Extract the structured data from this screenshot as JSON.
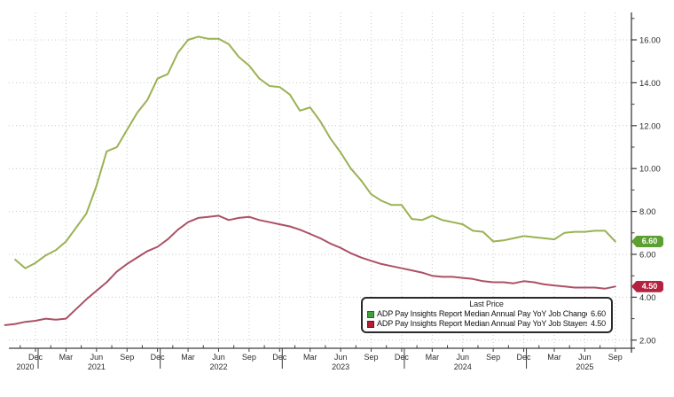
{
  "chart_data": {
    "type": "line",
    "title": "",
    "x_axis": {
      "start_month": "2020-09",
      "months_count": 61,
      "month_labels": [
        "Dec",
        "Mar",
        "Jun",
        "Sep",
        "Dec",
        "Mar",
        "Jun",
        "Sep",
        "Dec",
        "Mar",
        "Jun",
        "Sep",
        "Dec",
        "Mar",
        "Jun",
        "Sep",
        "Dec",
        "Mar",
        "Jun",
        "Sep"
      ],
      "month_label_positions": [
        3,
        6,
        9,
        12,
        15,
        18,
        21,
        24,
        27,
        30,
        33,
        36,
        39,
        42,
        45,
        48,
        51,
        54,
        57,
        60
      ],
      "year_labels": [
        {
          "label": "2020",
          "m": 2
        },
        {
          "label": "2021",
          "m": 9
        },
        {
          "label": "2022",
          "m": 21
        },
        {
          "label": "2023",
          "m": 33
        },
        {
          "label": "2024",
          "m": 45
        },
        {
          "label": "2025",
          "m": 57
        }
      ],
      "year_separator_positions": [
        3,
        15,
        27,
        39,
        51
      ]
    },
    "y_axis": {
      "side": "right",
      "range": [
        1.6,
        17.3
      ],
      "major_ticks": [
        2,
        4,
        6,
        8,
        10,
        12,
        14,
        16
      ],
      "minor_ticks": [
        3,
        5,
        7,
        9,
        11,
        13,
        15,
        17
      ],
      "tick_label_format": "2-decimals"
    },
    "grid": {
      "show": true,
      "style": "dotted",
      "color": "#c9c9c9"
    },
    "series": [
      {
        "name": "ADP Pay Insights Report Median Annual Pay YoY Job Changers",
        "color": "#9ab253",
        "badge_color": "#5ca032",
        "last_value": "6.60",
        "values": [
          null,
          5.75,
          5.35,
          5.6,
          5.95,
          6.2,
          6.6,
          7.25,
          7.9,
          9.2,
          10.8,
          11.0,
          11.8,
          12.6,
          13.2,
          14.2,
          14.4,
          15.4,
          16.0,
          16.15,
          16.05,
          16.05,
          15.8,
          15.2,
          14.8,
          14.2,
          13.85,
          13.8,
          13.45,
          12.7,
          12.85,
          12.2,
          11.4,
          10.75,
          10.0,
          9.45,
          8.8,
          8.5,
          8.3,
          8.3,
          7.65,
          7.6,
          7.8,
          7.6,
          7.5,
          7.4,
          7.1,
          7.05,
          6.6,
          6.65,
          6.75,
          6.85,
          6.8,
          6.75,
          6.7,
          7.0,
          7.05,
          7.05,
          7.1,
          7.1,
          6.6
        ]
      },
      {
        "name": "ADP Pay Insights Report Median Annual Pay YoY Job Stayers",
        "color": "#ac5165",
        "badge_color": "#b42240",
        "last_value": "4.50",
        "values": [
          2.7,
          2.75,
          2.85,
          2.9,
          3.0,
          2.95,
          3.0,
          3.45,
          3.9,
          4.3,
          4.7,
          5.2,
          5.55,
          5.85,
          6.15,
          6.35,
          6.7,
          7.15,
          7.5,
          7.7,
          7.75,
          7.8,
          7.6,
          7.7,
          7.75,
          7.6,
          7.5,
          7.4,
          7.3,
          7.15,
          6.95,
          6.75,
          6.5,
          6.3,
          6.05,
          5.85,
          5.7,
          5.55,
          5.45,
          5.35,
          5.25,
          5.15,
          5.0,
          4.95,
          4.95,
          4.9,
          4.85,
          4.75,
          4.7,
          4.7,
          4.65,
          4.75,
          4.7,
          4.6,
          4.55,
          4.5,
          4.45,
          4.45,
          4.45,
          4.4,
          4.5
        ]
      }
    ],
    "legend": {
      "title": "Last Price",
      "position": "bottom-right",
      "entries": [
        {
          "label": "ADP Pay Insights Report Median Annual Pay YoY Job Changers",
          "value": "6.60",
          "swatch_color": "#3da23c"
        },
        {
          "label": "ADP Pay Insights Report Median Annual Pay YoY Job Stayers",
          "value": "4.50",
          "swatch_color": "#b01e38"
        }
      ]
    }
  }
}
